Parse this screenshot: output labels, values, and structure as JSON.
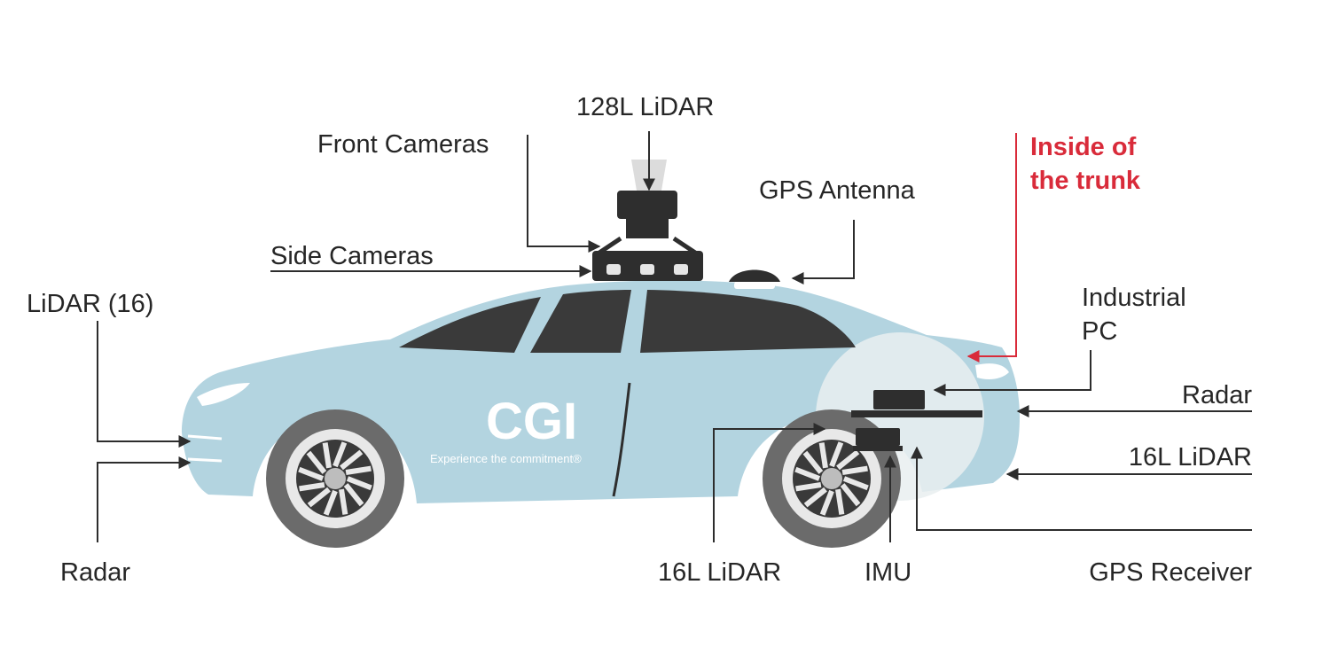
{
  "colors": {
    "car_body": "#b3d4e0",
    "window": "#3a3a3a",
    "tire": "#6b6b6b",
    "rim": "#e8e8e8",
    "sensor": "#2e2e2e",
    "leader": "#2d2d2d",
    "highlight_red": "#d92b3a",
    "trunk_zone": "#e9eef0"
  },
  "brand": {
    "logo": "CGI",
    "tagline": "Experience the commitment®"
  },
  "labels": {
    "lidar_128": "128L LiDAR",
    "front_cameras": "Front Cameras",
    "side_cameras": "Side Cameras",
    "gps_antenna": "GPS Antenna",
    "lidar_16_front": "LiDAR (16)",
    "radar_front": "Radar",
    "inside_trunk_line1": "Inside of",
    "inside_trunk_line2": "the trunk",
    "industrial_pc_line1": "Industrial",
    "industrial_pc_line2": "PC",
    "radar_rear": "Radar",
    "lidar_16l_rear": "16L LiDAR",
    "lidar_16l_bottom": "16L LiDAR",
    "imu": "IMU",
    "gps_receiver": "GPS Receiver"
  }
}
